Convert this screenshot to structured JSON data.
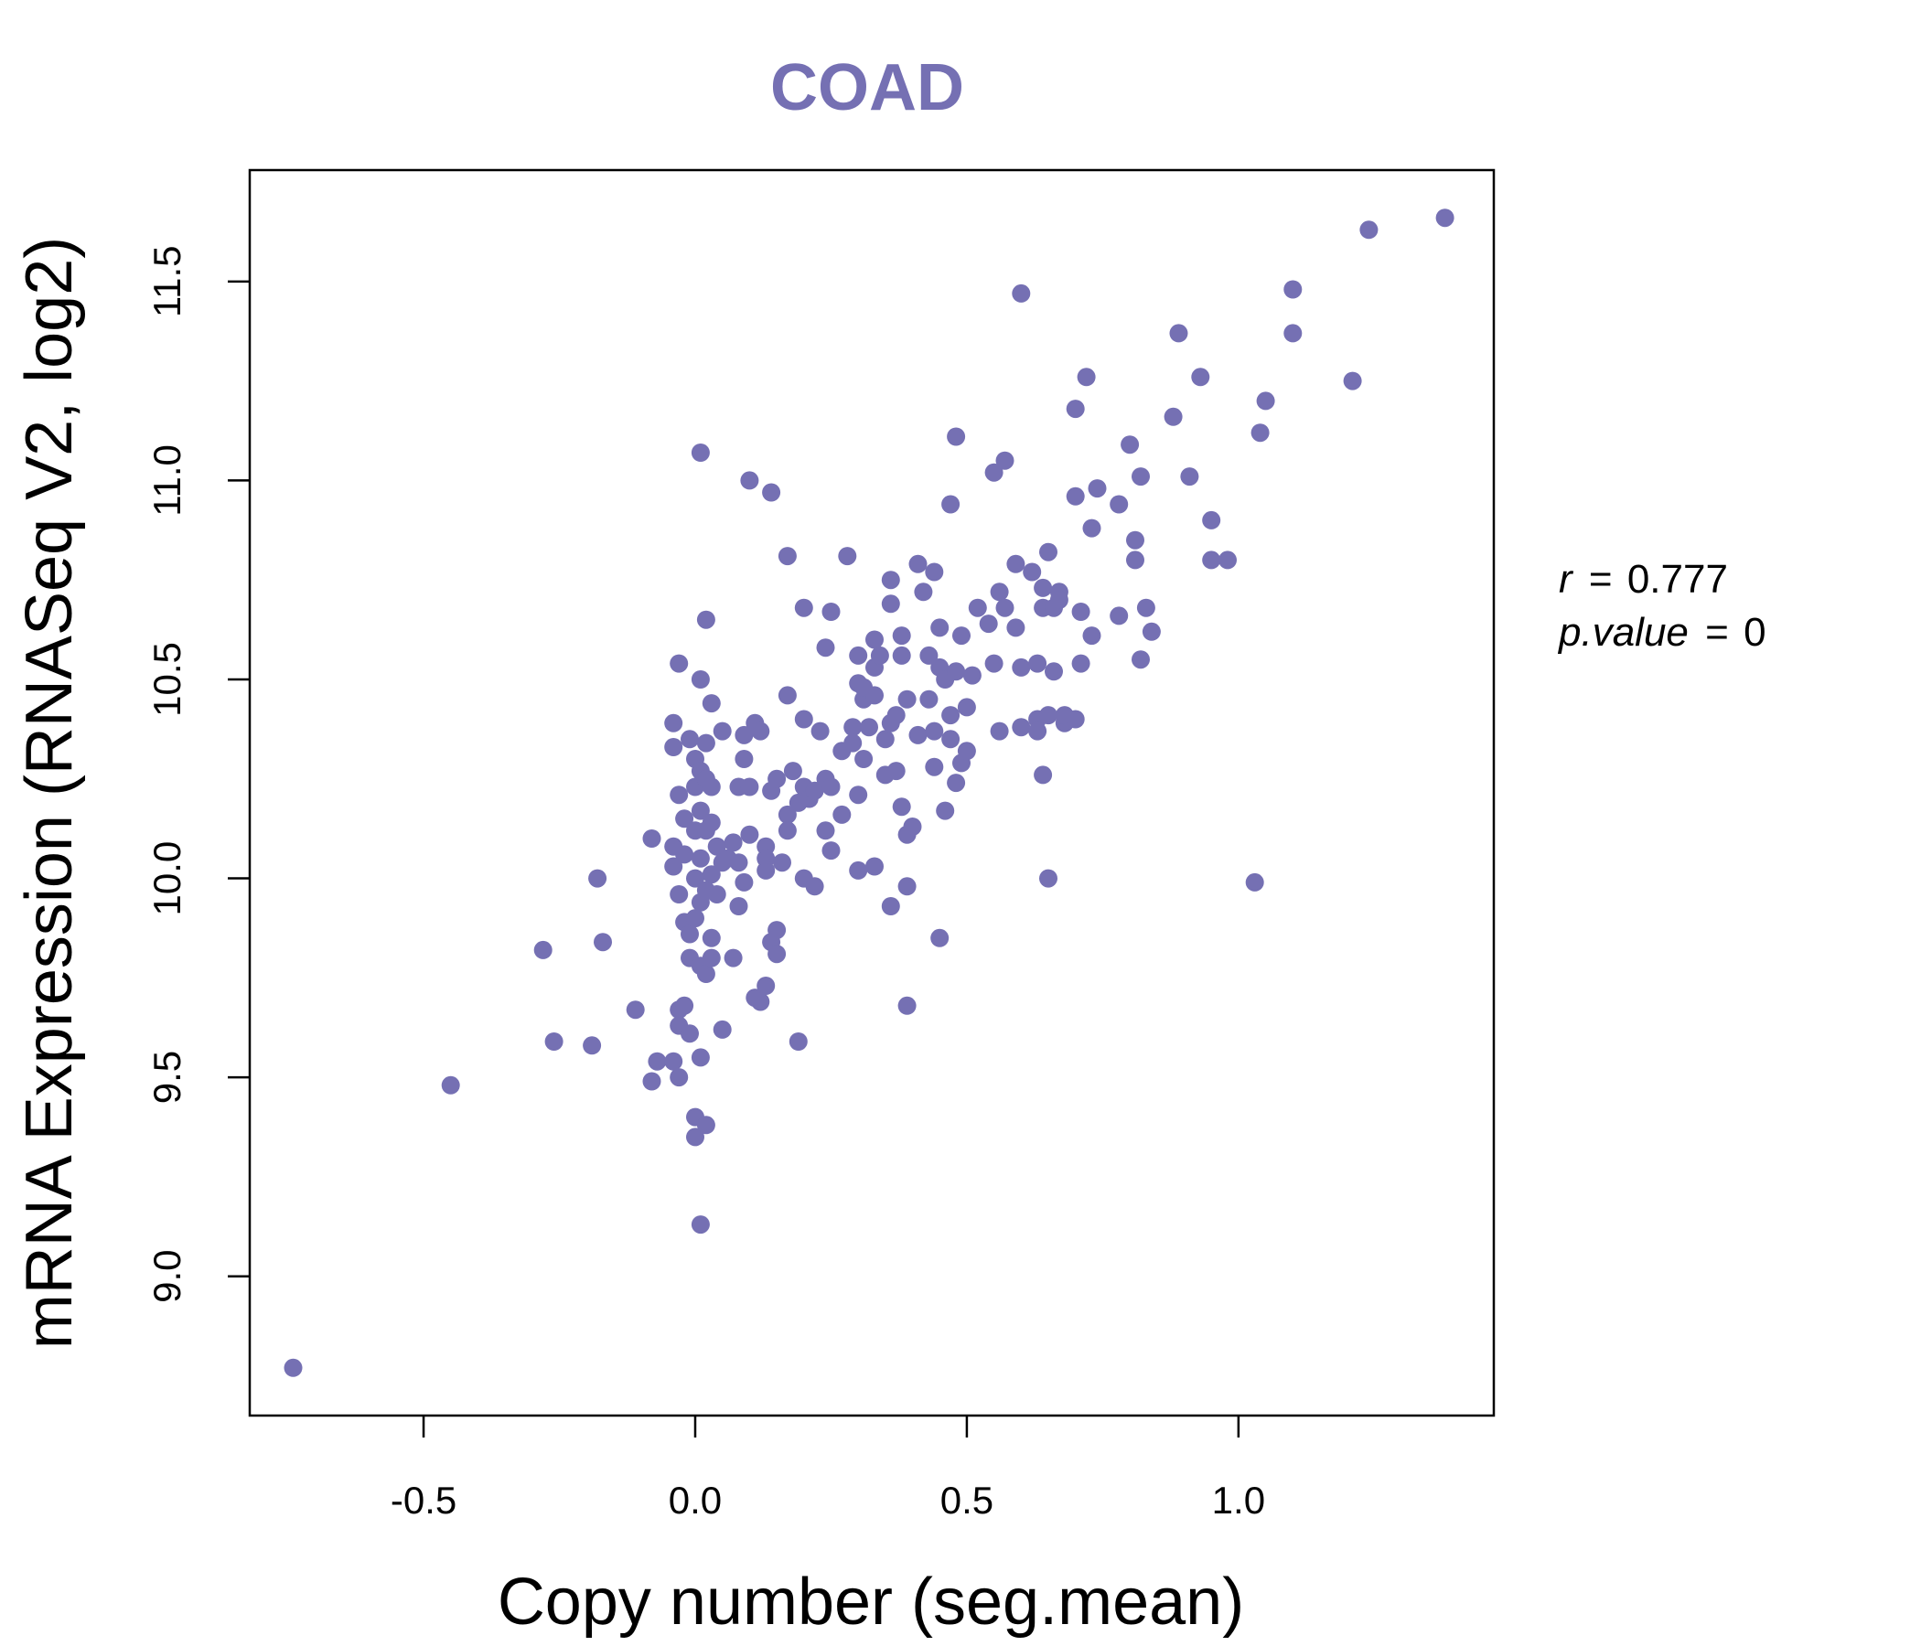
{
  "colors": {
    "accent": "#7570B3",
    "axis": "#000000",
    "background": "#FFFFFF"
  },
  "chart_data": {
    "type": "scatter",
    "title": "COAD",
    "xlabel": "Copy number (seg.mean)",
    "ylabel": "mRNA Expression (RNASeq V2, log2)",
    "xlim": [
      -0.82,
      1.47
    ],
    "ylim": [
      8.65,
      11.78
    ],
    "x_ticks": [
      -0.5,
      0.0,
      0.5,
      1.0
    ],
    "x_tick_labels": [
      "-0.5",
      "0.0",
      "0.5",
      "1.0"
    ],
    "y_ticks": [
      9.0,
      9.5,
      10.0,
      10.5,
      11.0,
      11.5
    ],
    "y_tick_labels": [
      "9.0",
      "9.5",
      "10.0",
      "10.5",
      "11.0",
      "11.5"
    ],
    "stats": {
      "r_label": "r",
      "r_value": "0.777",
      "p_label": "p.value",
      "p_value": "0"
    },
    "points": [
      [
        -0.74,
        8.77
      ],
      [
        -0.45,
        9.48
      ],
      [
        -0.28,
        9.82
      ],
      [
        -0.26,
        9.59
      ],
      [
        -0.19,
        9.58
      ],
      [
        -0.18,
        10.0
      ],
      [
        -0.17,
        9.84
      ],
      [
        -0.11,
        9.67
      ],
      [
        -0.08,
        9.49
      ],
      [
        -0.08,
        10.1
      ],
      [
        -0.07,
        9.54
      ],
      [
        -0.04,
        9.54
      ],
      [
        -0.03,
        9.5
      ],
      [
        -0.03,
        9.67
      ],
      [
        -0.04,
        10.33
      ],
      [
        -0.04,
        10.39
      ],
      [
        -0.03,
        10.54
      ],
      [
        -0.04,
        10.08
      ],
      [
        -0.03,
        10.21
      ],
      [
        -0.03,
        9.96
      ],
      [
        -0.04,
        10.03
      ],
      [
        -0.02,
        10.06
      ],
      [
        -0.03,
        9.63
      ],
      [
        -0.02,
        9.68
      ],
      [
        -0.02,
        9.89
      ],
      [
        -0.02,
        10.15
      ],
      [
        -0.01,
        9.8
      ],
      [
        -0.01,
        9.86
      ],
      [
        -0.01,
        9.61
      ],
      [
        -0.01,
        10.35
      ],
      [
        0.0,
        10.3
      ],
      [
        0.0,
        10.23
      ],
      [
        0.0,
        10.12
      ],
      [
        0.0,
        10.0
      ],
      [
        0.0,
        9.9
      ],
      [
        0.0,
        9.35
      ],
      [
        0.0,
        9.4
      ],
      [
        0.01,
        9.13
      ],
      [
        0.01,
        9.55
      ],
      [
        0.01,
        9.78
      ],
      [
        0.01,
        9.94
      ],
      [
        0.01,
        10.05
      ],
      [
        0.01,
        10.17
      ],
      [
        0.01,
        10.27
      ],
      [
        0.01,
        10.5
      ],
      [
        0.01,
        11.07
      ],
      [
        0.02,
        10.65
      ],
      [
        0.02,
        9.38
      ],
      [
        0.02,
        9.76
      ],
      [
        0.02,
        9.97
      ],
      [
        0.02,
        10.12
      ],
      [
        0.02,
        10.34
      ],
      [
        0.02,
        10.25
      ],
      [
        0.03,
        9.8
      ],
      [
        0.03,
        10.23
      ],
      [
        0.03,
        10.14
      ],
      [
        0.03,
        10.44
      ],
      [
        0.03,
        10.01
      ],
      [
        0.03,
        9.85
      ],
      [
        0.04,
        9.96
      ],
      [
        0.04,
        10.08
      ],
      [
        0.05,
        10.04
      ],
      [
        0.05,
        9.62
      ],
      [
        0.05,
        10.37
      ],
      [
        0.06,
        10.05
      ],
      [
        0.07,
        10.09
      ],
      [
        0.07,
        9.8
      ],
      [
        0.08,
        9.93
      ],
      [
        0.08,
        10.23
      ],
      [
        0.08,
        10.04
      ],
      [
        0.09,
        9.99
      ],
      [
        0.09,
        10.36
      ],
      [
        0.09,
        10.3
      ],
      [
        0.1,
        10.11
      ],
      [
        0.1,
        10.23
      ],
      [
        0.1,
        11.0
      ],
      [
        0.11,
        10.39
      ],
      [
        0.11,
        9.7
      ],
      [
        0.12,
        9.69
      ],
      [
        0.12,
        10.37
      ],
      [
        0.13,
        9.73
      ],
      [
        0.13,
        10.02
      ],
      [
        0.13,
        10.08
      ],
      [
        0.13,
        10.05
      ],
      [
        0.14,
        9.84
      ],
      [
        0.14,
        10.22
      ],
      [
        0.14,
        10.97
      ],
      [
        0.15,
        9.81
      ],
      [
        0.15,
        9.87
      ],
      [
        0.15,
        10.25
      ],
      [
        0.16,
        10.04
      ],
      [
        0.17,
        10.16
      ],
      [
        0.17,
        10.12
      ],
      [
        0.17,
        10.46
      ],
      [
        0.17,
        10.81
      ],
      [
        0.18,
        10.27
      ],
      [
        0.19,
        10.19
      ],
      [
        0.19,
        9.59
      ],
      [
        0.2,
        10.0
      ],
      [
        0.2,
        10.23
      ],
      [
        0.2,
        10.4
      ],
      [
        0.2,
        10.68
      ],
      [
        0.21,
        10.2
      ],
      [
        0.22,
        9.98
      ],
      [
        0.22,
        10.22
      ],
      [
        0.23,
        10.37
      ],
      [
        0.24,
        10.12
      ],
      [
        0.24,
        10.58
      ],
      [
        0.24,
        10.25
      ],
      [
        0.25,
        10.07
      ],
      [
        0.25,
        10.67
      ],
      [
        0.25,
        10.23
      ],
      [
        0.27,
        10.16
      ],
      [
        0.27,
        10.32
      ],
      [
        0.28,
        10.81
      ],
      [
        0.29,
        10.38
      ],
      [
        0.29,
        10.34
      ],
      [
        0.3,
        10.02
      ],
      [
        0.3,
        10.21
      ],
      [
        0.3,
        10.49
      ],
      [
        0.3,
        10.56
      ],
      [
        0.31,
        10.45
      ],
      [
        0.31,
        10.3
      ],
      [
        0.31,
        10.48
      ],
      [
        0.32,
        10.38
      ],
      [
        0.33,
        10.03
      ],
      [
        0.33,
        10.53
      ],
      [
        0.33,
        10.46
      ],
      [
        0.33,
        10.6
      ],
      [
        0.34,
        10.56
      ],
      [
        0.35,
        10.35
      ],
      [
        0.35,
        10.26
      ],
      [
        0.36,
        9.93
      ],
      [
        0.36,
        10.39
      ],
      [
        0.36,
        10.69
      ],
      [
        0.36,
        10.75
      ],
      [
        0.37,
        10.41
      ],
      [
        0.37,
        10.27
      ],
      [
        0.38,
        10.18
      ],
      [
        0.38,
        10.56
      ],
      [
        0.38,
        10.61
      ],
      [
        0.39,
        9.68
      ],
      [
        0.39,
        9.98
      ],
      [
        0.39,
        10.11
      ],
      [
        0.39,
        10.45
      ],
      [
        0.4,
        10.13
      ],
      [
        0.41,
        10.36
      ],
      [
        0.41,
        10.79
      ],
      [
        0.42,
        10.72
      ],
      [
        0.43,
        10.45
      ],
      [
        0.43,
        10.56
      ],
      [
        0.44,
        10.77
      ],
      [
        0.44,
        10.37
      ],
      [
        0.44,
        10.28
      ],
      [
        0.45,
        9.85
      ],
      [
        0.45,
        10.53
      ],
      [
        0.45,
        10.63
      ],
      [
        0.46,
        10.5
      ],
      [
        0.46,
        10.17
      ],
      [
        0.47,
        10.35
      ],
      [
        0.47,
        10.41
      ],
      [
        0.47,
        10.94
      ],
      [
        0.48,
        10.24
      ],
      [
        0.48,
        11.11
      ],
      [
        0.48,
        10.52
      ],
      [
        0.49,
        10.29
      ],
      [
        0.49,
        10.61
      ],
      [
        0.5,
        10.43
      ],
      [
        0.5,
        10.32
      ],
      [
        0.51,
        10.51
      ],
      [
        0.52,
        10.68
      ],
      [
        0.54,
        10.64
      ],
      [
        0.55,
        10.54
      ],
      [
        0.55,
        11.02
      ],
      [
        0.56,
        10.72
      ],
      [
        0.56,
        10.37
      ],
      [
        0.57,
        10.68
      ],
      [
        0.57,
        11.05
      ],
      [
        0.59,
        10.79
      ],
      [
        0.59,
        10.63
      ],
      [
        0.6,
        11.47
      ],
      [
        0.6,
        10.53
      ],
      [
        0.6,
        10.38
      ],
      [
        0.62,
        10.77
      ],
      [
        0.63,
        10.4
      ],
      [
        0.63,
        10.37
      ],
      [
        0.63,
        10.54
      ],
      [
        0.64,
        10.68
      ],
      [
        0.64,
        10.26
      ],
      [
        0.64,
        10.73
      ],
      [
        0.65,
        10.82
      ],
      [
        0.65,
        10.41
      ],
      [
        0.65,
        10.0
      ],
      [
        0.66,
        10.68
      ],
      [
        0.66,
        10.52
      ],
      [
        0.67,
        10.72
      ],
      [
        0.67,
        10.7
      ],
      [
        0.68,
        10.39
      ],
      [
        0.68,
        10.41
      ],
      [
        0.7,
        10.4
      ],
      [
        0.7,
        10.96
      ],
      [
        0.7,
        11.18
      ],
      [
        0.71,
        10.67
      ],
      [
        0.71,
        10.54
      ],
      [
        0.72,
        11.26
      ],
      [
        0.73,
        10.61
      ],
      [
        0.73,
        10.88
      ],
      [
        0.74,
        10.98
      ],
      [
        0.78,
        10.66
      ],
      [
        0.78,
        10.94
      ],
      [
        0.8,
        11.09
      ],
      [
        0.81,
        10.8
      ],
      [
        0.81,
        10.85
      ],
      [
        0.82,
        11.01
      ],
      [
        0.82,
        10.55
      ],
      [
        0.83,
        10.68
      ],
      [
        0.84,
        10.62
      ],
      [
        0.88,
        11.16
      ],
      [
        0.89,
        11.37
      ],
      [
        0.91,
        11.01
      ],
      [
        0.93,
        11.26
      ],
      [
        0.95,
        10.9
      ],
      [
        0.95,
        10.8
      ],
      [
        0.98,
        10.8
      ],
      [
        1.03,
        9.99
      ],
      [
        1.04,
        11.12
      ],
      [
        1.05,
        11.2
      ],
      [
        1.1,
        11.37
      ],
      [
        1.1,
        11.48
      ],
      [
        1.21,
        11.25
      ],
      [
        1.24,
        11.63
      ],
      [
        1.38,
        11.66
      ]
    ]
  }
}
